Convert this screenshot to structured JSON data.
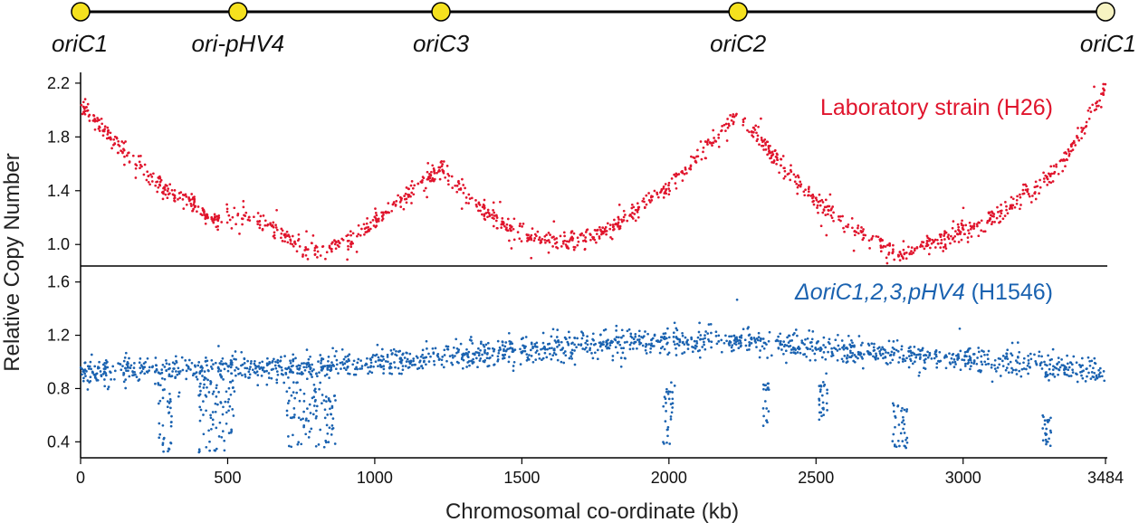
{
  "chart_data": {
    "type": "scatter",
    "xlabel": "Chromosomal co-ordinate (kb)",
    "ylabel": "Relative Copy Number",
    "xlim": [
      0,
      3484
    ],
    "x_ticks": [
      0,
      500,
      1000,
      1500,
      2000,
      2500,
      3000,
      3484
    ],
    "chromosome_map": {
      "origins": [
        {
          "label": "oriC1",
          "x": 0,
          "color": "#f5e11e"
        },
        {
          "label": "ori-pHV4",
          "x": 535,
          "color": "#f5e11e"
        },
        {
          "label": "oriC3",
          "x": 1225,
          "color": "#f5e11e"
        },
        {
          "label": "oriC2",
          "x": 2235,
          "color": "#f5e11e"
        },
        {
          "label": "oriC1",
          "x": 3484,
          "color": "#f7f3c2"
        }
      ]
    },
    "panels": [
      {
        "series_name": "Laboratory strain (H26)",
        "label_parts": {
          "italic": "",
          "regular": "Laboratory strain (H26)"
        },
        "color": "#e0142c",
        "ylim": [
          0.84,
          2.28
        ],
        "y_ticks": [
          "2.2",
          "1.8",
          "1.4",
          "1.0"
        ],
        "profile": {
          "x": [
            0,
            100,
            200,
            300,
            400,
            450,
            550,
            650,
            760,
            850,
            950,
            1050,
            1150,
            1225,
            1300,
            1400,
            1500,
            1600,
            1700,
            1800,
            1900,
            2000,
            2100,
            2235,
            2300,
            2400,
            2500,
            2600,
            2700,
            2780,
            2850,
            2950,
            3050,
            3150,
            3250,
            3350,
            3484
          ],
          "y": [
            2.05,
            1.8,
            1.58,
            1.37,
            1.28,
            1.17,
            1.23,
            1.14,
            0.95,
            0.96,
            1.07,
            1.25,
            1.44,
            1.56,
            1.4,
            1.2,
            1.07,
            1.02,
            1.04,
            1.12,
            1.27,
            1.44,
            1.65,
            1.98,
            1.8,
            1.55,
            1.33,
            1.14,
            1.05,
            0.92,
            0.98,
            1.05,
            1.14,
            1.27,
            1.43,
            1.64,
            2.15
          ]
        },
        "noise_sd": 0.035,
        "approx_point_count": 1400
      },
      {
        "series_name": "ΔoriC1,2,3,pHV4 (H1546)",
        "label_parts": {
          "italic": "ΔoriC1,2,3,pHV4",
          "regular": " (H1546)"
        },
        "color": "#1a62b0",
        "ylim": [
          0.28,
          1.72
        ],
        "y_ticks": [
          "1.6",
          "1.2",
          "0.8",
          "0.4"
        ],
        "profile": {
          "x": [
            0,
            250,
            500,
            750,
            1000,
            1250,
            1500,
            1750,
            2000,
            2250,
            2500,
            2750,
            3000,
            3250,
            3484
          ],
          "y": [
            0.92,
            0.94,
            0.96,
            0.95,
            0.99,
            1.04,
            1.09,
            1.13,
            1.14,
            1.17,
            1.1,
            1.06,
            1.03,
            0.97,
            0.92
          ]
        },
        "noise_sd": 0.05,
        "approx_point_count": 1700,
        "dropouts": [
          {
            "x_from": 260,
            "x_to": 310,
            "y_min": 0.32,
            "y_max": 0.85
          },
          {
            "x_from": 400,
            "x_to": 530,
            "y_min": 0.32,
            "y_max": 0.85
          },
          {
            "x_from": 700,
            "x_to": 870,
            "y_min": 0.36,
            "y_max": 0.85
          },
          {
            "x_from": 1980,
            "x_to": 2020,
            "y_min": 0.38,
            "y_max": 0.85
          },
          {
            "x_from": 2320,
            "x_to": 2340,
            "y_min": 0.52,
            "y_max": 0.85
          },
          {
            "x_from": 2510,
            "x_to": 2540,
            "y_min": 0.55,
            "y_max": 0.85
          },
          {
            "x_from": 2760,
            "x_to": 2810,
            "y_min": 0.33,
            "y_max": 0.7
          },
          {
            "x_from": 3270,
            "x_to": 3300,
            "y_min": 0.37,
            "y_max": 0.6
          }
        ]
      }
    ]
  }
}
